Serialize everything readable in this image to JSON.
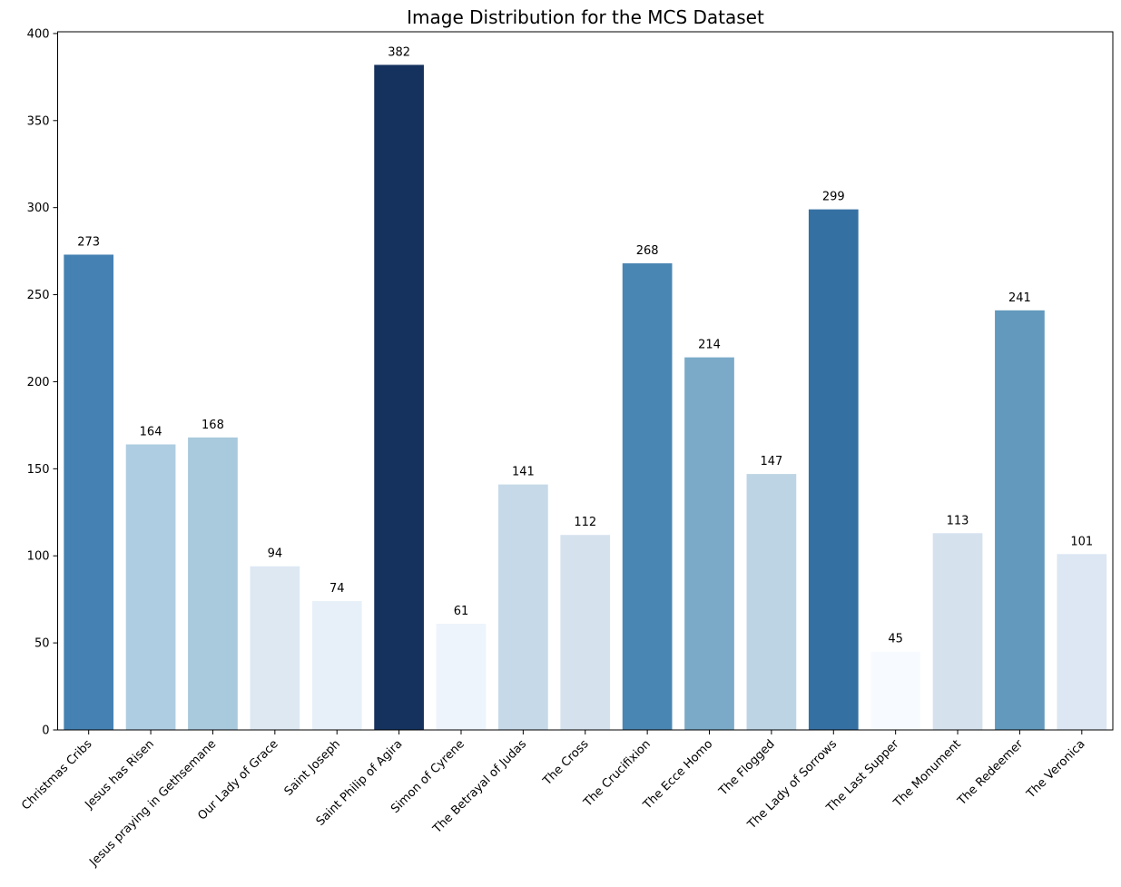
{
  "chart_data": {
    "type": "bar",
    "title": "Image Distribution for the MCS Dataset",
    "xlabel": "",
    "ylabel": "",
    "ylim": [
      0,
      401
    ],
    "yticks": [
      0,
      50,
      100,
      150,
      200,
      250,
      300,
      350,
      400
    ],
    "grid": false,
    "legend": "none",
    "color_scale": {
      "low": "#f7fbff",
      "high": "#08306b",
      "name": "Blues"
    },
    "categories": [
      "Christmas Cribs",
      "Jesus has Risen",
      "Jesus praying in Gethsemane",
      "Our Lady of Grace",
      "Saint Joseph",
      "Saint Philip of Agira",
      "Simon of Cyrene",
      "The Betrayal of Judas",
      "The Cross",
      "The Crucifixion",
      "The Ecce Homo",
      "The Flogged",
      "The Lady of Sorrows",
      "The Last Supper",
      "The Monument",
      "The Redeemer",
      "The Veronica"
    ],
    "values": [
      273,
      164,
      168,
      94,
      74,
      382,
      61,
      141,
      112,
      268,
      214,
      147,
      299,
      45,
      113,
      241,
      101
    ],
    "colors": [
      "#4582b3",
      "#aecde2",
      "#a9c9dc",
      "#dde8f3",
      "#e7f0f8",
      "#15325e",
      "#eef4fb",
      "#c6d9e8",
      "#d5e2ee",
      "#4a86b3",
      "#7aaac8",
      "#bdd4e4",
      "#3570a3",
      "#f7fbff",
      "#d5e2ee",
      "#6299bd",
      "#dce7f3"
    ]
  }
}
